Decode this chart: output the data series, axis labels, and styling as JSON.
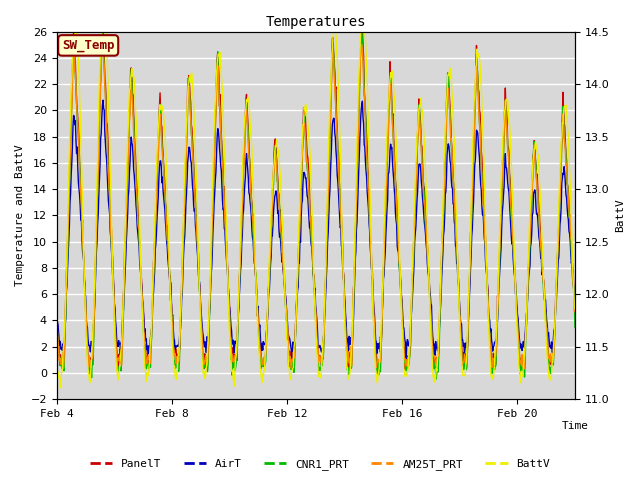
{
  "title": "Temperatures",
  "xlabel": "Time",
  "ylabel_left": "Temperature and BattV",
  "ylabel_right": "BattV",
  "ylim_left": [
    -2,
    26
  ],
  "ylim_right": [
    11.0,
    14.5
  ],
  "xtick_labels": [
    "Feb 4",
    "Feb 8",
    "Feb 12",
    "Feb 16",
    "Feb 20"
  ],
  "xtick_positions": [
    0,
    4,
    8,
    12,
    16
  ],
  "xlim": [
    0,
    18
  ],
  "legend_series": [
    "PanelT",
    "AirT",
    "CNR1_PRT",
    "AM25T_PRT",
    "BattV"
  ],
  "series_colors": [
    "#cc0000",
    "#0000bb",
    "#00bb00",
    "#ff8800",
    "#eeee00"
  ],
  "sw_temp_text_color": "#8b0000",
  "sw_temp_bg": "#ffffcc",
  "sw_temp_edge": "#8b0000",
  "plot_bg": "#d8d8d8",
  "fig_bg": "#ffffff",
  "grid_color": "#ffffff",
  "title_fontsize": 10,
  "label_fontsize": 8,
  "tick_fontsize": 8,
  "legend_fontsize": 8,
  "line_width": 1.0
}
